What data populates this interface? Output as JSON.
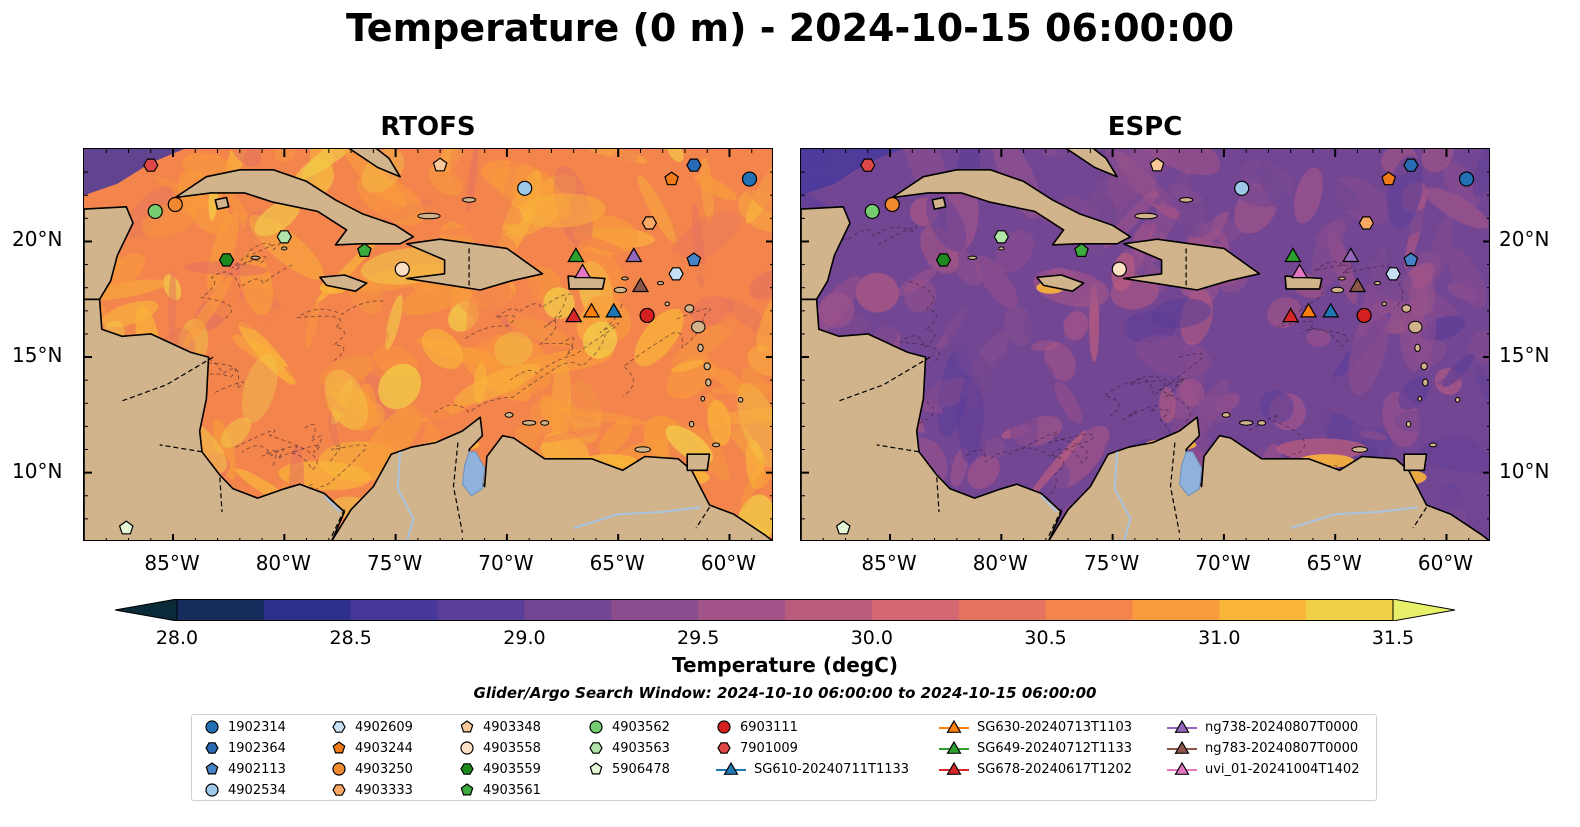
{
  "figure": {
    "suptitle": "Temperature (0 m) - 2024-10-15 06:00:00"
  },
  "chart_data": {
    "type": "heatmap",
    "colormap": "thermal",
    "panels": [
      {
        "title": "RTOFS",
        "warm_bias": 0.78
      },
      {
        "title": "ESPC",
        "warm_bias": 0.38
      }
    ],
    "lon_range": [
      -89,
      -58
    ],
    "lat_range": [
      7,
      24
    ],
    "x_ticks": [
      "85°W",
      "80°W",
      "75°W",
      "70°W",
      "65°W",
      "60°W"
    ],
    "x_tick_values": [
      -85,
      -80,
      -75,
      -70,
      -65,
      -60
    ],
    "y_ticks": [
      "20°N",
      "15°N",
      "10°N"
    ],
    "y_tick_values": [
      20,
      15,
      10
    ],
    "colorbar": {
      "label": "Temperature (degC)",
      "ticks": [
        "28.0",
        "28.5",
        "29.0",
        "29.5",
        "30.0",
        "30.5",
        "31.0",
        "31.5"
      ],
      "range": [
        28.0,
        31.5
      ],
      "extend": "both",
      "colors": [
        "#0a2a3a",
        "#162c5d",
        "#2c2f8c",
        "#46389b",
        "#5b3e98",
        "#724693",
        "#8a4d8e",
        "#a25489",
        "#ba5c7e",
        "#d36772",
        "#e5735f",
        "#f3854c",
        "#f89b3c",
        "#f9b43a",
        "#f2cf48",
        "#e8f06a"
      ]
    },
    "platforms": [
      {
        "id": "1902314",
        "lon": -59.1,
        "lat": 22.7,
        "marker": "circle",
        "color": "#2271b5"
      },
      {
        "id": "1902364",
        "lon": -61.6,
        "lat": 23.3,
        "marker": "hexagon",
        "color": "#2a6bb5"
      },
      {
        "id": "4902113",
        "lon": -61.6,
        "lat": 19.2,
        "marker": "pentagon",
        "color": "#4682c8"
      },
      {
        "id": "4902534",
        "lon": -69.2,
        "lat": 22.3,
        "marker": "circle",
        "color": "#9dc8e8"
      },
      {
        "id": "4902609",
        "lon": -62.4,
        "lat": 18.6,
        "marker": "hexagon",
        "color": "#c8e0f4"
      },
      {
        "id": "4903244",
        "lon": -62.6,
        "lat": 22.7,
        "marker": "pentagon",
        "color": "#f07a1a"
      },
      {
        "id": "4903250",
        "lon": -84.9,
        "lat": 21.6,
        "marker": "circle",
        "color": "#f08a30"
      },
      {
        "id": "4903333",
        "lon": -63.6,
        "lat": 20.8,
        "marker": "hexagon",
        "color": "#fba864"
      },
      {
        "id": "4903348",
        "lon": -73.0,
        "lat": 23.3,
        "marker": "pentagon",
        "color": "#fbc89a"
      },
      {
        "id": "4903558",
        "lon": -74.7,
        "lat": 18.8,
        "marker": "circle",
        "color": "#fde0c4"
      },
      {
        "id": "4903559",
        "lon": -82.6,
        "lat": 19.2,
        "marker": "hexagon",
        "color": "#1e8a1e"
      },
      {
        "id": "4903561",
        "lon": -76.4,
        "lat": 19.6,
        "marker": "pentagon",
        "color": "#3daa3d"
      },
      {
        "id": "4903562",
        "lon": -85.8,
        "lat": 21.3,
        "marker": "circle",
        "color": "#76cc70"
      },
      {
        "id": "4903563",
        "lon": -80.0,
        "lat": 20.2,
        "marker": "hexagon",
        "color": "#b0e4a8"
      },
      {
        "id": "5906478",
        "lon": -87.1,
        "lat": 7.6,
        "marker": "pentagon",
        "color": "#e4f8d8"
      },
      {
        "id": "6903111",
        "lon": -63.7,
        "lat": 16.8,
        "marker": "circle",
        "color": "#d42020"
      },
      {
        "id": "7901009",
        "lon": -86.0,
        "lat": 23.3,
        "marker": "hexagon",
        "color": "#e04848"
      },
      {
        "id": "SG610-20240711T1133",
        "lon": -65.2,
        "lat": 17.0,
        "marker": "triangle",
        "color": "#1f77b4",
        "line": true
      },
      {
        "id": "SG630-20240713T1103",
        "lon": -66.2,
        "lat": 17.0,
        "marker": "triangle",
        "color": "#ff7f0e",
        "line": true
      },
      {
        "id": "SG649-20240712T1133",
        "lon": -66.9,
        "lat": 19.4,
        "marker": "triangle",
        "color": "#2ca02c",
        "line": true
      },
      {
        "id": "SG678-20240617T1202",
        "lon": -67.0,
        "lat": 16.8,
        "marker": "triangle",
        "color": "#d62728",
        "line": true
      },
      {
        "id": "ng738-20240807T0000",
        "lon": -64.3,
        "lat": 19.4,
        "marker": "triangle",
        "color": "#9467bd",
        "line": true
      },
      {
        "id": "ng783-20240807T0000",
        "lon": -64.0,
        "lat": 18.1,
        "marker": "triangle",
        "color": "#8c564b",
        "line": true
      },
      {
        "id": "uvi_01-20241004T1402",
        "lon": -66.6,
        "lat": 18.7,
        "marker": "triangle",
        "color": "#e377c2",
        "line": true
      }
    ],
    "search_window": "Glider/Argo Search Window: 2024-10-10 06:00:00 to 2024-10-15 06:00:00"
  },
  "colors": {
    "land": "#d2b48c",
    "lake": "#8fb2dc",
    "river": "#a8c4e0"
  }
}
